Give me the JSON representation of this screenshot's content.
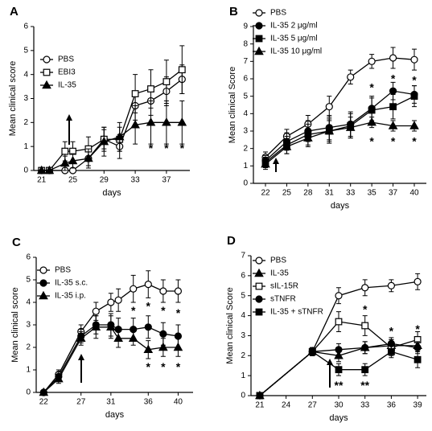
{
  "chart_data": [
    {
      "type": "line",
      "panel_label": "A",
      "x_label": "days",
      "y_label": "Mean clinical score",
      "x": [
        21,
        22,
        24,
        25,
        27,
        29,
        31,
        33,
        35,
        37,
        39
      ],
      "xlim": [
        20,
        40
      ],
      "xticks": [
        21,
        25,
        29,
        33,
        37
      ],
      "ylim": [
        0,
        6
      ],
      "yticks": [
        0,
        1,
        2,
        3,
        4,
        5,
        6
      ],
      "legend": "upper left",
      "series": [
        {
          "name": "PBS",
          "color": "#000000",
          "marker": "circle",
          "filled": false,
          "values": [
            0,
            0,
            0,
            0,
            0.5,
            1.3,
            1.0,
            2.7,
            2.9,
            3.3,
            3.8
          ],
          "errors": [
            0,
            0,
            0,
            0,
            0.3,
            0.4,
            0.5,
            0.6,
            0.6,
            0.6,
            0.6
          ]
        },
        {
          "name": "EBI3",
          "color": "#000000",
          "marker": "square",
          "filled": false,
          "values": [
            0,
            0,
            0.8,
            0.8,
            0.9,
            1.3,
            1.3,
            3.2,
            3.4,
            3.7,
            4.2
          ],
          "errors": [
            0,
            0,
            0.4,
            0.4,
            0.5,
            0.5,
            0.5,
            0.8,
            0.8,
            0.9,
            1.0
          ]
        },
        {
          "name": "IL-35",
          "color": "#000000",
          "marker": "triangle",
          "filled": true,
          "values": [
            0,
            0,
            0.3,
            0.4,
            0.5,
            1.2,
            1.4,
            1.9,
            2.0,
            2.0,
            2.0
          ],
          "errors": [
            0,
            0,
            0.3,
            0.3,
            0.4,
            0.6,
            0.6,
            0.8,
            0.9,
            0.9,
            0.9
          ]
        }
      ],
      "annotations": [
        {
          "text": "*",
          "x": 35,
          "y": 1.0
        },
        {
          "text": "*",
          "x": 37,
          "y": 1.0
        },
        {
          "text": "*",
          "x": 39,
          "y": 1.0
        }
      ]
    },
    {
      "type": "line",
      "panel_label": "B",
      "x_label": "days",
      "y_label": "Mean clinical Score",
      "categories": [
        "22",
        "25",
        "28",
        "31",
        "33",
        "35",
        "37",
        "40"
      ],
      "ylim": [
        0,
        9
      ],
      "yticks": [
        0,
        1,
        2,
        3,
        4,
        5,
        6,
        7,
        8,
        9
      ],
      "legend": "upper left",
      "series": [
        {
          "name": "PBS",
          "color": "#000000",
          "marker": "circle",
          "filled": false,
          "values": [
            1.5,
            2.7,
            3.4,
            4.4,
            6.1,
            7.0,
            7.2,
            7.1
          ],
          "errors": [
            0.3,
            0.4,
            0.5,
            0.6,
            0.4,
            0.4,
            0.6,
            0.6
          ]
        },
        {
          "name": "IL-35 2 μg/ml",
          "color": "#000000",
          "marker": "circle",
          "filled": true,
          "values": [
            1.3,
            2.4,
            3.0,
            3.2,
            3.4,
            4.3,
            5.3,
            5.1
          ],
          "errors": [
            0.3,
            0.5,
            0.6,
            0.7,
            0.7,
            0.7,
            0.5,
            0.5
          ]
        },
        {
          "name": "IL-35 5 μg/ml",
          "color": "#000000",
          "marker": "square",
          "filled": true,
          "values": [
            1.2,
            2.2,
            2.8,
            3.0,
            3.3,
            4.2,
            4.4,
            5.0
          ],
          "errors": [
            0.3,
            0.5,
            0.6,
            0.7,
            0.7,
            0.7,
            0.7,
            0.6
          ]
        },
        {
          "name": "IL-35 10 μg/ml",
          "color": "#000000",
          "marker": "triangle",
          "filled": true,
          "values": [
            1.1,
            2.1,
            2.6,
            3.0,
            3.2,
            3.5,
            3.3,
            3.3
          ],
          "errors": [
            0.3,
            0.4,
            0.5,
            0.6,
            0.6,
            0.3,
            0.3,
            0.3
          ]
        }
      ],
      "annotations": [
        {
          "text": "*",
          "x": "35",
          "y": 5.6
        },
        {
          "text": "*",
          "x": "37",
          "y": 6.1
        },
        {
          "text": "*",
          "x": "40",
          "y": 6.0
        },
        {
          "text": "*",
          "x": "35",
          "y": 2.5
        },
        {
          "text": "*",
          "x": "37",
          "y": 2.5
        },
        {
          "text": "*",
          "x": "40",
          "y": 2.5
        }
      ]
    },
    {
      "type": "line",
      "panel_label": "C",
      "x_label": "days",
      "y_label": "Mean clinical score",
      "x": [
        22,
        24,
        27,
        29,
        31,
        32,
        34,
        36,
        38,
        40
      ],
      "xlim": [
        21,
        42
      ],
      "xticks": [
        22,
        27,
        31,
        36,
        40
      ],
      "ylim": [
        0,
        6
      ],
      "yticks": [
        0,
        1,
        2,
        3,
        4,
        5,
        6
      ],
      "legend": "upper left",
      "series": [
        {
          "name": "PBS",
          "color": "#000000",
          "marker": "circle",
          "filled": false,
          "values": [
            0,
            0.8,
            2.7,
            3.6,
            4.0,
            4.1,
            4.6,
            4.8,
            4.5,
            4.5
          ],
          "errors": [
            0,
            0.2,
            0.3,
            0.4,
            0.4,
            0.5,
            0.6,
            0.6,
            0.5,
            0.5
          ]
        },
        {
          "name": "IL-35 s.c.",
          "color": "#000000",
          "marker": "circle",
          "filled": true,
          "values": [
            0,
            0.7,
            2.5,
            3.0,
            3.0,
            2.8,
            2.8,
            2.9,
            2.6,
            2.5
          ],
          "errors": [
            0,
            0.2,
            0.3,
            0.4,
            0.5,
            0.5,
            0.5,
            0.5,
            0.5,
            0.5
          ]
        },
        {
          "name": "IL-35 i.p.",
          "color": "#000000",
          "marker": "triangle",
          "filled": true,
          "values": [
            0,
            0.6,
            2.4,
            2.9,
            2.9,
            2.4,
            2.4,
            1.9,
            2.0,
            2.0
          ],
          "errors": [
            0,
            0.2,
            0.3,
            0.5,
            0.5,
            0.4,
            0.3,
            0.4,
            0.4,
            0.4
          ]
        }
      ],
      "annotations": [
        {
          "text": "*",
          "x": 34,
          "y": 3.7
        },
        {
          "text": "*",
          "x": 36,
          "y": 3.9
        },
        {
          "text": "*",
          "x": 38,
          "y": 3.7
        },
        {
          "text": "*",
          "x": 40,
          "y": 3.6
        },
        {
          "text": "*",
          "x": 36,
          "y": 1.2
        },
        {
          "text": "*",
          "x": 38,
          "y": 1.2
        },
        {
          "text": "*",
          "x": 40,
          "y": 1.2
        }
      ]
    },
    {
      "type": "line",
      "panel_label": "D",
      "x_label": "days",
      "y_label": "Mean clinical Score",
      "x": [
        21,
        27,
        30,
        33,
        36,
        39
      ],
      "xlim": [
        20,
        40
      ],
      "xticks": [
        21,
        24,
        27,
        30,
        33,
        36,
        39
      ],
      "ylim": [
        0,
        7
      ],
      "yticks": [
        0,
        1,
        2,
        3,
        4,
        5,
        6,
        7
      ],
      "legend": "upper left",
      "series": [
        {
          "name": "PBS",
          "color": "#000000",
          "marker": "circle",
          "filled": false,
          "values": [
            0,
            2.2,
            5.0,
            5.4,
            5.5,
            5.7
          ],
          "errors": [
            0,
            0.2,
            0.4,
            0.4,
            0.3,
            0.4
          ]
        },
        {
          "name": "IL-35",
          "color": "#000000",
          "marker": "triangle",
          "filled": true,
          "values": [
            0,
            2.2,
            2.0,
            2.4,
            2.5,
            2.5
          ],
          "errors": [
            0,
            0.2,
            0.3,
            0.3,
            0.3,
            0.3
          ]
        },
        {
          "name": "sIL-15R",
          "color": "#000000",
          "marker": "square",
          "filled": false,
          "values": [
            0,
            2.2,
            3.7,
            3.5,
            2.4,
            2.8
          ],
          "errors": [
            0,
            0.2,
            0.5,
            0.5,
            0.4,
            0.4
          ]
        },
        {
          "name": "sTNFR",
          "color": "#000000",
          "marker": "circle",
          "filled": true,
          "values": [
            0,
            2.2,
            2.3,
            2.4,
            2.6,
            2.4
          ],
          "errors": [
            0,
            0.2,
            0.3,
            0.3,
            0.3,
            0.3
          ]
        },
        {
          "name": "IL-35 + sTNFR",
          "color": "#000000",
          "marker": "square",
          "filled": true,
          "values": [
            0,
            2.2,
            1.3,
            1.3,
            2.2,
            1.8
          ],
          "errors": [
            0,
            0.2,
            0.3,
            0.3,
            0.3,
            0.4
          ]
        }
      ],
      "annotations": [
        {
          "text": "*",
          "x": 33,
          "y": 4.4
        },
        {
          "text": "*",
          "x": 36,
          "y": 3.3
        },
        {
          "text": "*",
          "x": 39,
          "y": 3.4
        },
        {
          "text": "**",
          "x": 30,
          "y": 0.6
        },
        {
          "text": "**",
          "x": 33,
          "y": 0.6
        }
      ]
    }
  ]
}
